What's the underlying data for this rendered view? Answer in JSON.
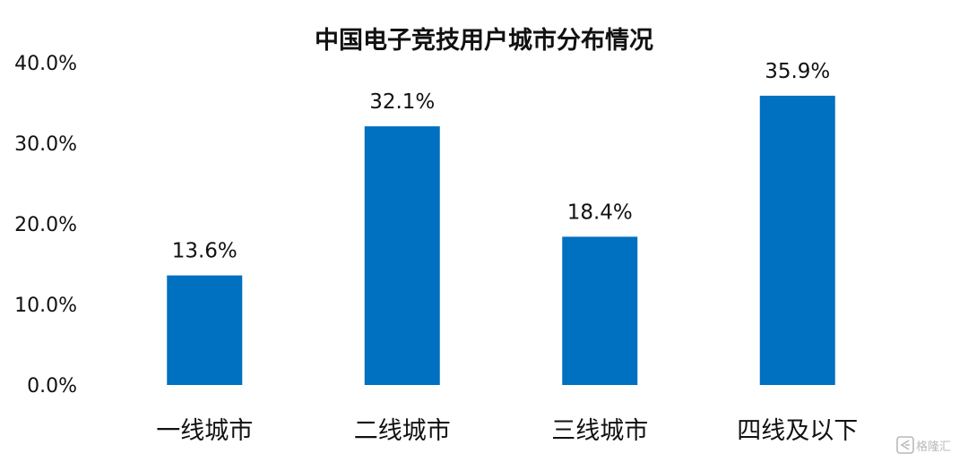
{
  "chart_data": {
    "type": "bar",
    "title": "中国电子竞技用户城市分布情况",
    "xlabel": "",
    "ylabel": "",
    "categories": [
      "一线城市",
      "二线城市",
      "三线城市",
      "四线及以下"
    ],
    "values": [
      13.6,
      32.1,
      18.4,
      35.9
    ],
    "data_labels": [
      "13.6%",
      "32.1%",
      "18.4%",
      "35.9%"
    ],
    "ylim": [
      0,
      40
    ],
    "yticks": [
      0,
      10,
      20,
      30,
      40
    ],
    "ytick_labels": [
      "0.0%",
      "10.0%",
      "20.0%",
      "30.0%",
      "40.0%"
    ],
    "grid": false,
    "legend": "none",
    "bar_color": "#0070C0"
  },
  "watermark": {
    "icon": "gelonghui-logo-icon",
    "text": "格隆汇"
  }
}
